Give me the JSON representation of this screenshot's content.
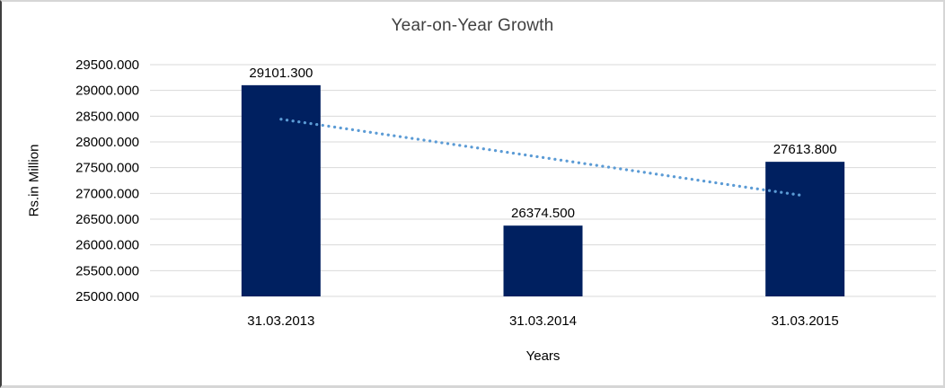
{
  "window": {
    "background": "#ffffff",
    "frame_border_color": "#d6d6d6",
    "frame_left_border_color": "#3f3f3f"
  },
  "chart_data": {
    "type": "bar",
    "title": "Year-on-Year Growth",
    "xlabel": "Years",
    "ylabel": "Rs.in Million",
    "categories": [
      "31.03.2013",
      "31.03.2014",
      "31.03.2015"
    ],
    "values": [
      29101.3,
      26374.5,
      27613.8
    ],
    "value_labels": [
      "29101.300",
      "26374.500",
      "27613.800"
    ],
    "ylim": [
      25000,
      29500
    ],
    "ytick_step": 500,
    "ytick_labels": [
      "25000.000",
      "25500.000",
      "26000.000",
      "26500.000",
      "27000.000",
      "27500.000",
      "28000.000",
      "28500.000",
      "29000.000",
      "29500.000"
    ],
    "grid": true,
    "legend_position": "none",
    "bar_color": "#002060",
    "gridline_color": "#d9d9d9",
    "text_color": "#000000",
    "title_color": "#404040",
    "trendline": {
      "type": "linear",
      "style": "dotted",
      "color": "#5b9bd5",
      "start_value": 28440.3,
      "end_value": 26952.8
    }
  }
}
